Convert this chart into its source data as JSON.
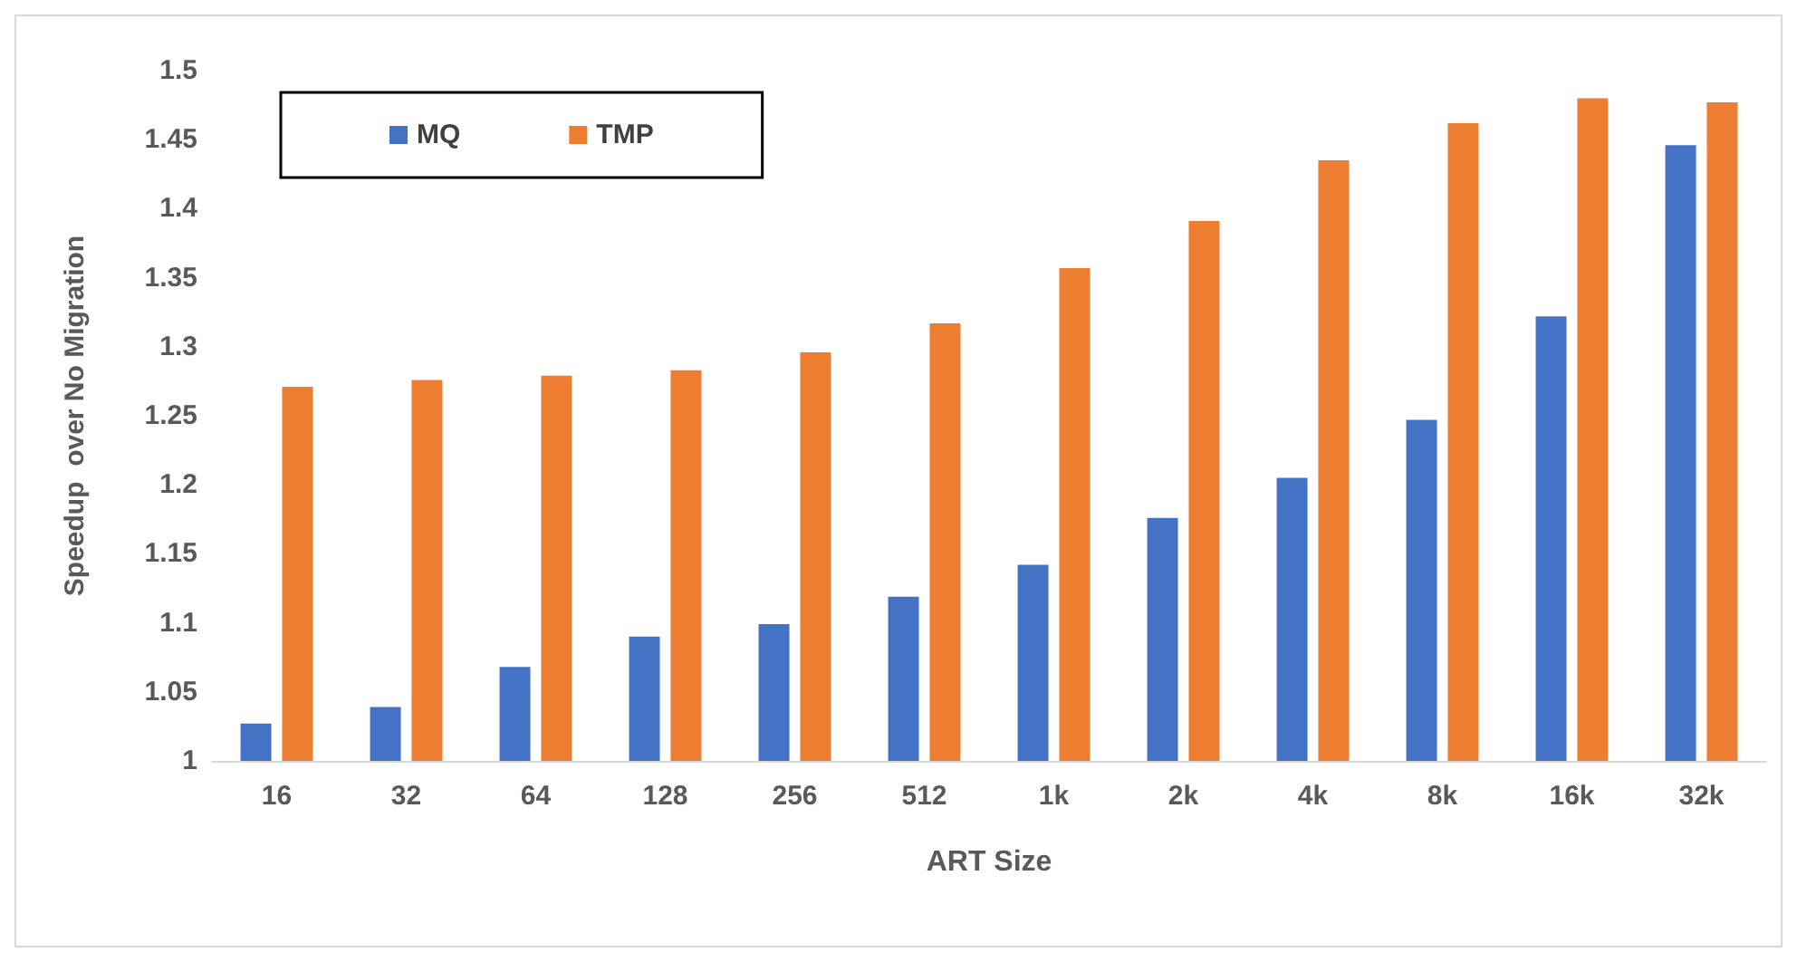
{
  "chart_data": {
    "type": "bar",
    "xlabel": "ART Size",
    "ylabel": "Speedup  over No Migration",
    "categories": [
      "16",
      "32",
      "64",
      "128",
      "256",
      "512",
      "1k",
      "2k",
      "4k",
      "8k",
      "16k",
      "32k"
    ],
    "series": [
      {
        "name": "MQ",
        "color": "#4472c4",
        "values": [
          1.027,
          1.039,
          1.068,
          1.09,
          1.099,
          1.119,
          1.142,
          1.176,
          1.205,
          1.247,
          1.322,
          1.446
        ]
      },
      {
        "name": "TMP",
        "color": "#ed7d31",
        "values": [
          1.271,
          1.276,
          1.279,
          1.283,
          1.296,
          1.317,
          1.357,
          1.391,
          1.435,
          1.462,
          1.48,
          1.477
        ]
      }
    ],
    "ylim": [
      1,
      1.5
    ],
    "yticks": [
      1,
      1.05,
      1.1,
      1.15,
      1.2,
      1.25,
      1.3,
      1.35,
      1.4,
      1.45,
      1.5
    ],
    "grid": false,
    "legend": "top left"
  }
}
